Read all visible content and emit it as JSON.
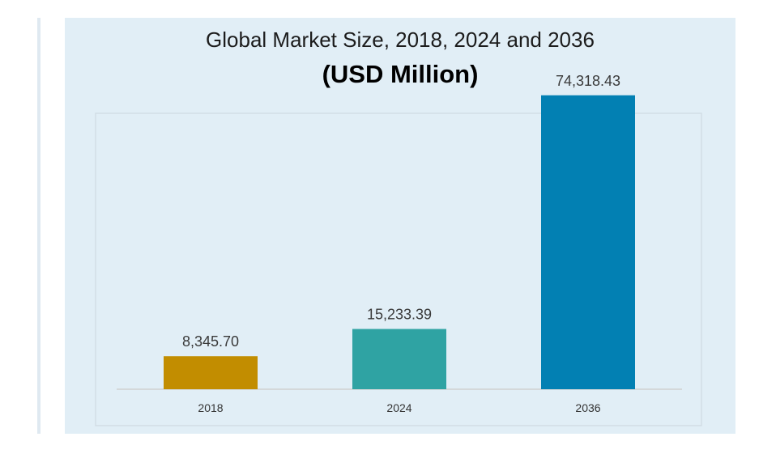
{
  "chart_data": {
    "type": "bar",
    "title": "Global Market Size, 2018, 2024 and 2036",
    "subtitle": "(USD Million)",
    "categories": [
      "2018",
      "2024",
      "2036"
    ],
    "values": [
      8345.7,
      15233.39,
      74318.43
    ],
    "data_labels": [
      "8,345.70",
      "15,233.39",
      "74,318.43"
    ],
    "colors": [
      "#c28d00",
      "#2fa3a3",
      "#0280b3"
    ],
    "ylim": [
      0,
      80000
    ],
    "grid": false,
    "legend": "none",
    "xlabel": "",
    "ylabel": ""
  }
}
